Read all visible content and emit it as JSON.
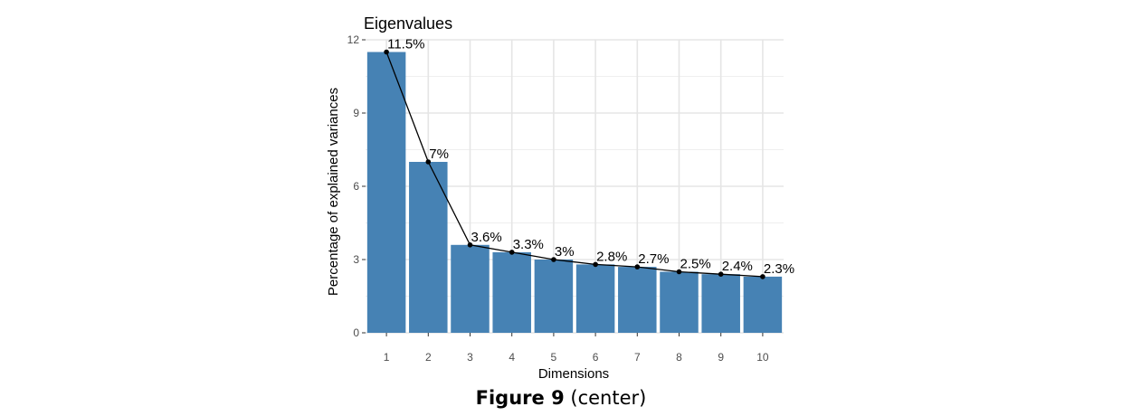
{
  "chart_data": {
    "type": "bar",
    "title": "Eigenvalues",
    "xlabel": "Dimensions",
    "ylabel": "Percentage of explained variances",
    "categories": [
      "1",
      "2",
      "3",
      "4",
      "5",
      "6",
      "7",
      "8",
      "9",
      "10"
    ],
    "values": [
      11.5,
      7.0,
      3.6,
      3.3,
      3.0,
      2.8,
      2.7,
      2.5,
      2.4,
      2.3
    ],
    "data_labels": [
      "11.5%",
      "7%",
      "3.6%",
      "3.3%",
      "3%",
      "2.8%",
      "2.7%",
      "2.5%",
      "2.4%",
      "2.3%"
    ],
    "ylim": [
      0,
      12
    ],
    "yticks": [
      0,
      3,
      6,
      9,
      12
    ],
    "grid": true,
    "line_overlay": true,
    "colors": {
      "bar": "#4682b4",
      "line": "#000000",
      "grid": "#e5e5e5"
    }
  },
  "caption": {
    "bold": "Figure 9",
    "rest": "(center)"
  }
}
